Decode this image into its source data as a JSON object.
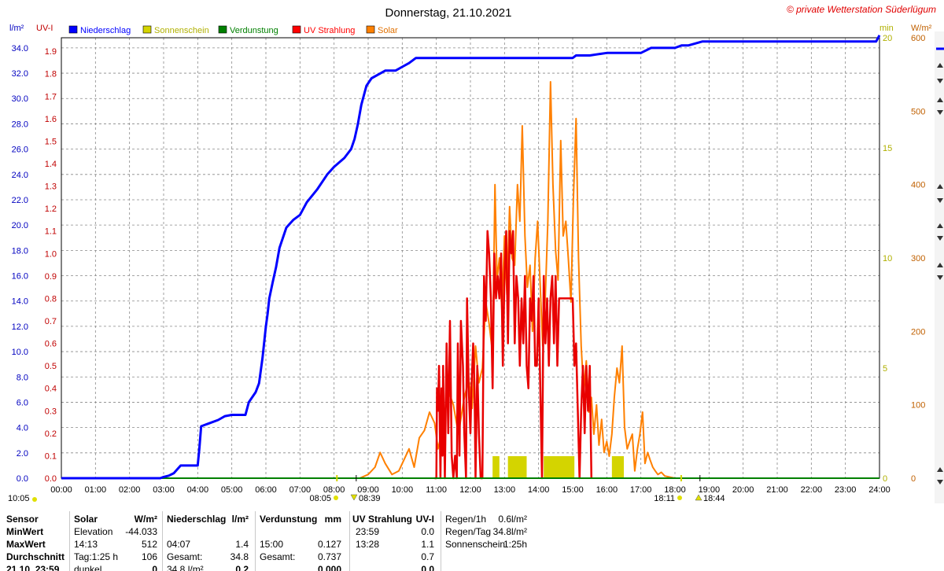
{
  "title": "Donnerstag, 21.10.2021",
  "copyright": "© private Wetterstation Süderlügum",
  "units": {
    "left1": "l/m²",
    "left2": "UV-I",
    "right1": "min",
    "right2": "W/m²"
  },
  "legend": [
    {
      "label": "Niederschlag",
      "color": "#0000ff"
    },
    {
      "label": "Sonnenschein",
      "color": "#d4d400"
    },
    {
      "label": "Verdunstung",
      "color": "#008000"
    },
    {
      "label": "UV Strahlung",
      "color": "#ff0000"
    },
    {
      "label": "Solar",
      "color": "#ff8000"
    }
  ],
  "colors": {
    "rain": "#0000ff",
    "sunshine": "#d4d400",
    "evaporation": "#008000",
    "uv": "#e80000",
    "solar": "#ff8000",
    "rain_axis": "#0000c0",
    "uv_axis": "#c00000",
    "sun_axis": "#b0b000",
    "solar_axis": "#c06000"
  },
  "markers": {
    "left": "10:05",
    "sunrise": "08:05",
    "sunrise2": "08:39",
    "sunset": "18:11",
    "sunset2": "18:44"
  },
  "chart_data": {
    "type": "line",
    "x_ticks": [
      "00:00",
      "01:00",
      "02:00",
      "03:00",
      "04:00",
      "05:00",
      "06:00",
      "07:00",
      "08:00",
      "09:00",
      "10:00",
      "11:00",
      "12:00",
      "13:00",
      "14:00",
      "15:00",
      "16:00",
      "17:00",
      "18:00",
      "19:00",
      "20:00",
      "21:00",
      "22:00",
      "23:00",
      "24:00"
    ],
    "xlim": [
      0,
      24
    ],
    "grid": true,
    "axes": {
      "rain": {
        "ylim": [
          0,
          34.8
        ],
        "ticks": [
          "0.0",
          "2.0",
          "4.0",
          "6.0",
          "8.0",
          "10.0",
          "12.0",
          "14.0",
          "16.0",
          "18.0",
          "20.0",
          "22.0",
          "24.0",
          "26.0",
          "28.0",
          "30.0",
          "32.0",
          "34.0"
        ]
      },
      "uv": {
        "ylim": [
          0,
          1.96
        ],
        "ticks": [
          "0.0",
          "0.1",
          "0.2",
          "0.3",
          "0.4",
          "0.5",
          "0.6",
          "0.7",
          "0.8",
          "0.9",
          "1.0",
          "1.1",
          "1.2",
          "1.3",
          "1.4",
          "1.5",
          "1.6",
          "1.7",
          "1.8",
          "1.9"
        ]
      },
      "sunshine": {
        "ylim": [
          0,
          20
        ],
        "ticks": [
          "0",
          "5",
          "10",
          "15",
          "20"
        ]
      },
      "solar": {
        "ylim": [
          0,
          600
        ],
        "ticks": [
          "0",
          "100",
          "200",
          "300",
          "400",
          "500",
          "600"
        ]
      }
    },
    "series": [
      {
        "name": "Niederschlag",
        "axis": "rain",
        "x": [
          0,
          2.9,
          3.0,
          3.15,
          3.3,
          3.4,
          3.5,
          4.0,
          4.05,
          4.1,
          4.2,
          4.3,
          4.6,
          4.8,
          5.0,
          5.4,
          5.5,
          5.7,
          5.8,
          5.9,
          6.0,
          6.05,
          6.1,
          6.2,
          6.3,
          6.4,
          6.6,
          6.8,
          7.0,
          7.2,
          7.5,
          7.8,
          8.0,
          8.3,
          8.5,
          8.6,
          8.7,
          8.8,
          8.95,
          9.1,
          9.3,
          9.5,
          9.8,
          10.0,
          10.2,
          10.4,
          11.5,
          12.0,
          13.0,
          14.0,
          14.5,
          15.0,
          15.1,
          15.5,
          16.0,
          16.5,
          17.0,
          17.3,
          17.6,
          17.8,
          18.0,
          18.2,
          18.4,
          18.8,
          19.5,
          20.0,
          21.0,
          22.0,
          23.0,
          23.9,
          24.0
        ],
        "y": [
          0,
          0,
          0.1,
          0.2,
          0.4,
          0.7,
          1.0,
          1.0,
          2.4,
          4.1,
          4.2,
          4.3,
          4.6,
          4.9,
          5.0,
          5.0,
          6.0,
          6.8,
          7.5,
          9.5,
          12.0,
          13.0,
          14.2,
          15.5,
          16.7,
          18.2,
          19.8,
          20.4,
          20.8,
          21.8,
          22.8,
          24.0,
          24.6,
          25.3,
          26.0,
          26.8,
          28.0,
          29.5,
          31.0,
          31.6,
          31.9,
          32.2,
          32.2,
          32.5,
          32.8,
          33.2,
          33.2,
          33.2,
          33.2,
          33.2,
          33.2,
          33.2,
          33.4,
          33.4,
          33.6,
          33.6,
          33.6,
          34.0,
          34.0,
          34.0,
          34.0,
          34.2,
          34.2,
          34.5,
          34.5,
          34.5,
          34.5,
          34.5,
          34.5,
          34.5,
          35.0
        ]
      },
      {
        "name": "UV Strahlung",
        "axis": "uv",
        "x": [
          10.95,
          11.0,
          11.02,
          11.05,
          11.08,
          11.12,
          11.15,
          11.18,
          11.2,
          11.25,
          11.3,
          11.35,
          11.4,
          11.45,
          11.5,
          11.55,
          11.6,
          11.63,
          11.68,
          11.72,
          11.78,
          11.82,
          11.87,
          11.9,
          11.95,
          12.0,
          12.03,
          12.08,
          12.12,
          12.15,
          12.2,
          12.25,
          12.3,
          12.35,
          12.4,
          12.45,
          12.5,
          12.55,
          12.6,
          12.65,
          12.7,
          12.75,
          12.8,
          12.85,
          12.9,
          12.95,
          13.0,
          13.05,
          13.1,
          13.15,
          13.2,
          13.25,
          13.3,
          13.35,
          13.4,
          13.45,
          13.5,
          13.55,
          13.6,
          13.65,
          13.7,
          13.75,
          13.8,
          13.85,
          13.9,
          13.95,
          14.0,
          14.05,
          14.1,
          14.15,
          14.2,
          14.25,
          14.3,
          14.35,
          14.4,
          14.45,
          14.5,
          14.55,
          14.6,
          14.65,
          14.7,
          14.75,
          14.8,
          14.85,
          14.9,
          14.95,
          15.0,
          15.05,
          15.1,
          15.15,
          15.2,
          15.25,
          15.3,
          15.35,
          15.4,
          15.45,
          15.5,
          15.55
        ],
        "y": [
          0.0,
          0.0,
          0.4,
          0.3,
          0.5,
          0.0,
          0.4,
          0.1,
          0.5,
          0.0,
          0.6,
          0.2,
          0.7,
          0.1,
          0.0,
          0.1,
          0.0,
          0.6,
          0.1,
          0.7,
          0.5,
          0.2,
          0.0,
          0.8,
          0.4,
          0.2,
          0.4,
          0.6,
          0.4,
          0.0,
          0.5,
          0.2,
          0.0,
          0.0,
          0.9,
          0.7,
          1.1,
          1.0,
          0.8,
          0.4,
          1.0,
          0.8,
          0.9,
          0.8,
          1.0,
          0.5,
          0.9,
          1.1,
          0.6,
          1.1,
          1.0,
          1.1,
          0.6,
          0.9,
          0.8,
          0.5,
          0.8,
          0.6,
          0.9,
          0.5,
          0.4,
          0.8,
          0.7,
          0.9,
          0.5,
          0.5,
          0.8,
          0.4,
          0.0,
          0.9,
          0.6,
          0.8,
          0.5,
          0.8,
          0.9,
          0.6,
          0.9,
          0.5,
          0.8,
          0.8,
          0.8,
          0.8,
          0.8,
          0.8,
          0.8,
          0.8,
          0.8,
          0.5,
          0.6,
          0.3,
          0.0,
          0.3,
          0.5,
          0.2,
          0.5,
          0.3,
          0.5,
          0.0
        ]
      },
      {
        "name": "Solar",
        "axis": "solar",
        "x": [
          8.75,
          9.0,
          9.2,
          9.35,
          9.5,
          9.7,
          9.9,
          10.05,
          10.2,
          10.35,
          10.5,
          10.65,
          10.8,
          10.95,
          11.05,
          11.2,
          11.35,
          11.5,
          11.65,
          11.8,
          11.95,
          12.05,
          12.15,
          12.25,
          12.35,
          12.45,
          12.55,
          12.65,
          12.72,
          12.78,
          12.85,
          12.92,
          13.0,
          13.07,
          13.15,
          13.22,
          13.3,
          13.38,
          13.45,
          13.52,
          13.6,
          13.67,
          13.75,
          13.82,
          13.9,
          13.97,
          14.05,
          14.12,
          14.2,
          14.27,
          14.35,
          14.42,
          14.5,
          14.57,
          14.65,
          14.72,
          14.8,
          14.87,
          14.95,
          15.02,
          15.1,
          15.17,
          15.25,
          15.32,
          15.4,
          15.47,
          15.55,
          15.62,
          15.7,
          15.77,
          15.85,
          15.92,
          16.0,
          16.07,
          16.15,
          16.22,
          16.3,
          16.37,
          16.45,
          16.52,
          16.6,
          16.67,
          16.75,
          16.82,
          16.9,
          16.97,
          17.05,
          17.12,
          17.2,
          17.27,
          17.35,
          17.42,
          17.5,
          17.6,
          17.7,
          17.8,
          17.9,
          18.0
        ],
        "y": [
          0,
          5,
          15,
          35,
          20,
          5,
          10,
          25,
          40,
          15,
          55,
          65,
          90,
          75,
          40,
          70,
          120,
          100,
          60,
          105,
          135,
          95,
          180,
          130,
          150,
          240,
          210,
          170,
          400,
          270,
          300,
          230,
          330,
          250,
          370,
          300,
          290,
          400,
          350,
          480,
          330,
          260,
          290,
          200,
          300,
          350,
          260,
          180,
          250,
          350,
          540,
          400,
          310,
          270,
          460,
          330,
          350,
          300,
          240,
          380,
          490,
          300,
          180,
          120,
          160,
          90,
          110,
          60,
          100,
          45,
          80,
          35,
          50,
          30,
          60,
          110,
          150,
          130,
          180,
          70,
          40,
          50,
          60,
          10,
          40,
          60,
          90,
          20,
          35,
          25,
          15,
          10,
          5,
          8,
          3,
          2,
          1,
          0
        ]
      },
      {
        "name": "Sonnenschein",
        "axis": "sunshine",
        "type": "bar",
        "bars": [
          {
            "x0": 12.65,
            "x1": 12.85,
            "value": 1
          },
          {
            "x0": 13.1,
            "x1": 13.65,
            "value": 1
          },
          {
            "x0": 14.15,
            "x1": 15.05,
            "value": 1
          },
          {
            "x0": 16.15,
            "x1": 16.5,
            "value": 1
          }
        ]
      },
      {
        "name": "Verdunstung",
        "axis": "rain",
        "x": [
          0,
          24
        ],
        "y": [
          0,
          0
        ]
      }
    ]
  },
  "summary": {
    "cols": [
      {
        "id": "sensor",
        "header": [
          "Sensor"
        ],
        "rows": [
          "MinWert",
          "MaxWert",
          "Durchschnitt",
          "21.10. 23:59"
        ]
      },
      {
        "id": "solar",
        "header": [
          "Solar",
          "W/m²"
        ],
        "rows": [
          [
            "Elevation",
            "-44.033"
          ],
          [
            "14:13",
            "512"
          ],
          [
            "Tag:1:25 h",
            "106"
          ],
          [
            "dunkel",
            "0"
          ]
        ]
      },
      {
        "id": "rain",
        "header": [
          "Niederschlag",
          "l/m²"
        ],
        "rows": [
          [
            "",
            ""
          ],
          [
            "04:07",
            "1.4"
          ],
          [
            "Gesamt:",
            "34.8"
          ],
          [
            "34.8 l/m²",
            "0.2"
          ]
        ]
      },
      {
        "id": "evap",
        "header": [
          "Verdunstung",
          "mm"
        ],
        "rows": [
          [
            "",
            ""
          ],
          [
            "15:00",
            "0.127"
          ],
          [
            "Gesamt:",
            "0.737"
          ],
          [
            "",
            "0.000"
          ]
        ]
      },
      {
        "id": "uv",
        "header": [
          "UV Strahlung",
          "UV-I"
        ],
        "rows": [
          [
            "23:59",
            "0.0"
          ],
          [
            "13:28",
            "1.1"
          ],
          [
            "",
            "0.7"
          ],
          [
            "",
            "0.0"
          ]
        ]
      },
      {
        "id": "regen",
        "header": [],
        "rows": [
          [
            "Regen/1h",
            "0.6l/m²"
          ],
          [
            "Regen/Tag",
            "34.8l/m²"
          ],
          [
            "Sonnenschein",
            "1:25h"
          ]
        ]
      }
    ]
  }
}
